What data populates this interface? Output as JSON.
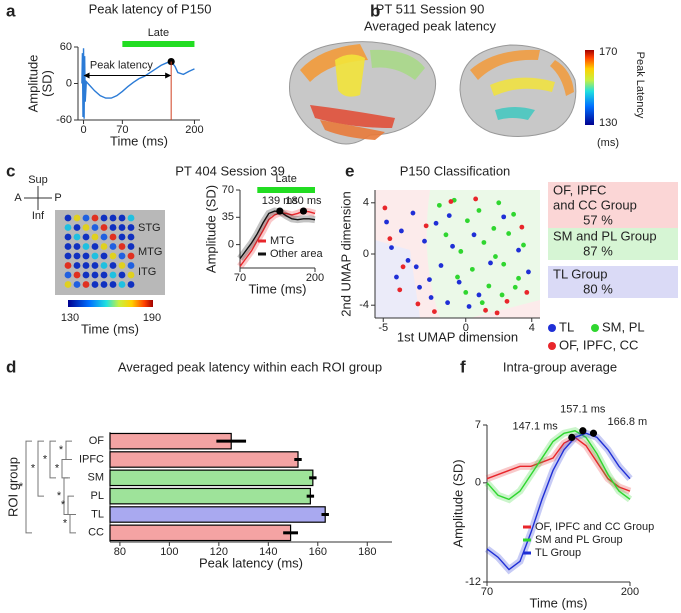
{
  "panel_labels": [
    "a",
    "b",
    "c",
    "d",
    "e",
    "f"
  ],
  "brain_b": {
    "title": "PT 511 Session 90",
    "subtitle": "Averaged peak latency",
    "colorbar": {
      "label": "Peak Latency",
      "unit": "(ms)",
      "ticks": [
        130,
        170
      ]
    }
  },
  "grid_c": {
    "compass": {
      "up": "Sup",
      "down": "Inf",
      "left": "A",
      "right": "P"
    },
    "regions": [
      "STG",
      "MTG",
      "ITG"
    ],
    "colorbar": {
      "label": "Time (ms)",
      "ticks": [
        130,
        190
      ]
    }
  },
  "chart_data": [
    {
      "type": "line",
      "title": "Peak latency of P150",
      "xlabel": "Time   (ms)",
      "ylabel": [
        "Amplitude",
        "(SD)"
      ],
      "x": [
        -3,
        -2,
        -1,
        0,
        1,
        2,
        3,
        5,
        10,
        20,
        30,
        40,
        50,
        60,
        70,
        80,
        90,
        100,
        110,
        120,
        130,
        140,
        150,
        158,
        165,
        170,
        180,
        190,
        200
      ],
      "values": [
        0,
        50,
        -55,
        58,
        -58,
        45,
        -30,
        3,
        -2,
        -12,
        -20,
        -24,
        -24,
        -20,
        -13,
        -5,
        2,
        8,
        12,
        18,
        24,
        30,
        34,
        36,
        28,
        18,
        15,
        20,
        24
      ],
      "color": "#2b7bd6",
      "xlim": [
        -10,
        210
      ],
      "xticks": [
        0,
        70,
        200
      ],
      "ylim": [
        -60,
        60
      ],
      "yticks": [
        -60,
        0,
        60
      ],
      "late_label": "Late",
      "late_range": [
        70,
        200
      ],
      "span_label": "Peak latency",
      "peaks": {
        "x": [
          158
        ],
        "y": [
          36
        ]
      }
    },
    {
      "type": "line",
      "title": "PT 404 Session 39",
      "xlabel": "Time (ms)",
      "ylabel": "Amplitude (SD)",
      "x": [
        70,
        80,
        90,
        100,
        110,
        120,
        130,
        140,
        150,
        160,
        170,
        180,
        190,
        200
      ],
      "series": [
        {
          "name": "MTG",
          "color": "#e8262b",
          "values": [
            -28,
            -18,
            -8,
            5,
            18,
            32,
            38,
            41,
            40,
            38,
            40,
            43,
            42,
            40
          ]
        },
        {
          "name": "Other area",
          "color": "#111111",
          "values": [
            -18,
            -8,
            2,
            14,
            28,
            40,
            43,
            42,
            37,
            33,
            32,
            33,
            33,
            32
          ]
        }
      ],
      "xlim": [
        70,
        200
      ],
      "xticks": [
        70,
        200
      ],
      "ylim": [
        -30,
        70
      ],
      "yticks": [
        0,
        35,
        70
      ],
      "late_label": "Late",
      "late_range": [
        100,
        200
      ],
      "peaks": {
        "x": [
          139,
          180
        ],
        "y": [
          43,
          43
        ],
        "value_labels": [
          "139 ms",
          "180 ms"
        ]
      },
      "legend": "lower right"
    },
    {
      "type": "barh",
      "title": "Averaged peak latency within each ROI group",
      "xlabel": "Peak latency (ms)",
      "ylabel": "ROI group",
      "categories": [
        "OF",
        "IPFC",
        "SM",
        "PL",
        "TL",
        "CC"
      ],
      "values": [
        125,
        152,
        158,
        157,
        163,
        149
      ],
      "errors": [
        6,
        1.5,
        1.5,
        1.5,
        1.5,
        3
      ],
      "colors": [
        "#f4a3a3",
        "#f4a3a3",
        "#9ee39a",
        "#9ee39a",
        "#a9a9f0",
        "#f4a3a3"
      ],
      "xlim": [
        76,
        190
      ],
      "xticks": [
        80,
        100,
        120,
        140,
        160,
        180
      ],
      "significance_labels": [
        "*",
        "*",
        "*",
        "*",
        "*",
        "*",
        "*",
        "*"
      ]
    },
    {
      "type": "scatter",
      "title": "P150 Classification",
      "xlabel": "1st UMAP dimension",
      "ylabel": "2nd UMAP dimension",
      "xlim": [
        -5.5,
        4.5
      ],
      "xticks": [
        -5,
        0,
        4
      ],
      "ylim": [
        -5,
        5
      ],
      "yticks": [
        -4,
        0,
        4
      ],
      "series": [
        {
          "name": "TL",
          "color": "#1f2fd6",
          "x": [
            -4.8,
            -4.5,
            -4.2,
            -3.9,
            -3.5,
            -3.2,
            -2.8,
            -2.5,
            -2.1,
            -1.8,
            -1.5,
            -1.1,
            -0.8,
            -0.4,
            0.2,
            0.8,
            1.5,
            2.3,
            3.2,
            3.8,
            -3.0,
            -2.2,
            -1.0,
            0.5
          ],
          "values": [
            2.5,
            0.5,
            -1.8,
            1.8,
            -0.5,
            3.2,
            -2.6,
            1.0,
            -3.4,
            2.4,
            -0.9,
            -3.8,
            0.6,
            -2.2,
            -4.1,
            -3.2,
            -0.7,
            2.9,
            0.3,
            -1.4,
            -1.0,
            -2.0,
            3.0,
            1.5
          ]
        },
        {
          "name": "SM, PL",
          "color": "#2fd62f",
          "x": [
            -1.6,
            -1.2,
            -0.7,
            -0.3,
            0.1,
            0.4,
            0.8,
            1.1,
            1.4,
            1.7,
            2.0,
            2.3,
            2.6,
            2.9,
            3.2,
            3.5,
            0.0,
            1.0,
            2.2,
            3.0,
            -0.5,
            1.8
          ],
          "values": [
            3.8,
            1.5,
            4.2,
            0.2,
            2.6,
            -1.2,
            3.4,
            0.9,
            -2.5,
            2.0,
            4.0,
            -0.8,
            1.6,
            3.1,
            -1.9,
            0.7,
            -3.0,
            -3.8,
            -3.2,
            -2.6,
            -1.8,
            -0.2
          ]
        },
        {
          "name": "OF, IPFC, CC",
          "color": "#e8262b",
          "x": [
            -4.9,
            -4.6,
            -3.8,
            -2.9,
            -1.9,
            -0.9,
            0.6,
            1.2,
            2.5,
            3.4,
            -4.0,
            -2.4,
            1.9,
            3.7
          ],
          "values": [
            3.6,
            1.2,
            -1.0,
            -3.9,
            -4.5,
            4.1,
            4.3,
            -4.4,
            -3.7,
            2.1,
            -2.8,
            2.2,
            -4.6,
            -3.0
          ]
        }
      ],
      "group_accuracy": {
        "names": [
          [
            "OF, IPFC",
            "and CC Group"
          ],
          [
            "SM and PL Group"
          ],
          [
            "TL Group"
          ]
        ],
        "values": [
          57,
          87,
          80
        ],
        "value_labels": [
          "57 %",
          "87 %",
          "80 %"
        ],
        "colors": [
          "#fbd6d6",
          "#d6f5d4",
          "#dadaf6"
        ]
      }
    },
    {
      "type": "line",
      "title": "Intra-group average",
      "xlabel": "Time   (ms)",
      "ylabel": "Amplitude (SD)",
      "x": [
        70,
        80,
        90,
        100,
        110,
        120,
        130,
        140,
        150,
        160,
        170,
        180,
        190,
        200
      ],
      "series": [
        {
          "name": "OF, IPFC and  CC Group",
          "color": "#e8262b",
          "values": [
            0.5,
            1,
            1.5,
            2,
            2,
            2.5,
            3,
            4.8,
            5.5,
            4.5,
            2.5,
            0.5,
            -0.5,
            -1
          ]
        },
        {
          "name": "SM and PL Group",
          "color": "#2fd62f",
          "values": [
            0,
            -1.5,
            -2,
            -1,
            1,
            3,
            5,
            6,
            6.3,
            5.5,
            3.5,
            1,
            -1,
            -2
          ]
        },
        {
          "name": "TL Group",
          "color": "#1f2fd6",
          "values": [
            -8,
            -9,
            -10.5,
            -9.5,
            -6,
            -2,
            1.5,
            4,
            5.5,
            6,
            5.5,
            4,
            2,
            0.5
          ]
        }
      ],
      "xlim": [
        70,
        200
      ],
      "xticks": [
        70,
        200
      ],
      "ylim": [
        -12,
        7
      ],
      "yticks": [
        -12,
        0,
        7
      ],
      "peaks": {
        "x": [
          147.1,
          157.1,
          166.8
        ],
        "y": [
          5.5,
          6.3,
          6
        ],
        "value_labels": [
          "147.1 ms",
          "157.1 ms",
          "166.8 m"
        ]
      },
      "legend": "lower right"
    }
  ]
}
